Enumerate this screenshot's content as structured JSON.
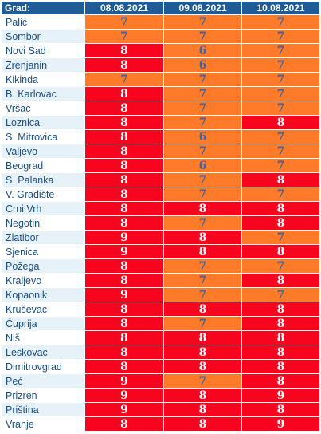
{
  "header": {
    "city_label": "Grad:",
    "dates": [
      "08.08.2021",
      "09.08.2021",
      "10.08.2021"
    ]
  },
  "threshold_high": 8,
  "colors": {
    "orange": "#ff7a29",
    "red": "#f7041e",
    "header": "#1f5c95"
  },
  "rows": [
    {
      "city": "Palić",
      "values": [
        7,
        7,
        7
      ]
    },
    {
      "city": "Sombor",
      "values": [
        7,
        7,
        7
      ]
    },
    {
      "city": "Novi Sad",
      "values": [
        8,
        6,
        7
      ]
    },
    {
      "city": "Zrenjanin",
      "values": [
        8,
        6,
        7
      ]
    },
    {
      "city": "Kikinda",
      "values": [
        7,
        7,
        7
      ]
    },
    {
      "city": "B. Karlovac",
      "values": [
        8,
        7,
        7
      ]
    },
    {
      "city": "Vršac",
      "values": [
        8,
        7,
        7
      ]
    },
    {
      "city": "Loznica",
      "values": [
        8,
        7,
        8
      ]
    },
    {
      "city": "S. Mitrovica",
      "values": [
        8,
        6,
        7
      ]
    },
    {
      "city": "Valjevo",
      "values": [
        8,
        7,
        7
      ]
    },
    {
      "city": "Beograd",
      "values": [
        8,
        6,
        7
      ]
    },
    {
      "city": "S. Palanka",
      "values": [
        8,
        7,
        8
      ]
    },
    {
      "city": "V. Gradište",
      "values": [
        8,
        7,
        7
      ]
    },
    {
      "city": "Crni Vrh",
      "values": [
        8,
        8,
        8
      ]
    },
    {
      "city": "Negotin",
      "values": [
        8,
        7,
        8
      ]
    },
    {
      "city": "Zlatibor",
      "values": [
        9,
        8,
        7
      ]
    },
    {
      "city": "Sjenica",
      "values": [
        9,
        8,
        8
      ]
    },
    {
      "city": "Požega",
      "values": [
        8,
        7,
        7
      ]
    },
    {
      "city": "Kraljevo",
      "values": [
        8,
        7,
        8
      ]
    },
    {
      "city": "Kopaonik",
      "values": [
        9,
        7,
        7
      ]
    },
    {
      "city": "Kruševac",
      "values": [
        8,
        8,
        8
      ]
    },
    {
      "city": "Ćuprija",
      "values": [
        8,
        7,
        8
      ]
    },
    {
      "city": "Niš",
      "values": [
        8,
        8,
        8
      ]
    },
    {
      "city": "Leskovac",
      "values": [
        8,
        8,
        8
      ]
    },
    {
      "city": "Dimitrovgrad",
      "values": [
        8,
        8,
        8
      ]
    },
    {
      "city": "Peć",
      "values": [
        9,
        7,
        8
      ]
    },
    {
      "city": "Prizren",
      "values": [
        9,
        8,
        9
      ]
    },
    {
      "city": "Priština",
      "values": [
        9,
        8,
        8
      ]
    },
    {
      "city": "Vranje",
      "values": [
        8,
        8,
        9
      ]
    }
  ]
}
